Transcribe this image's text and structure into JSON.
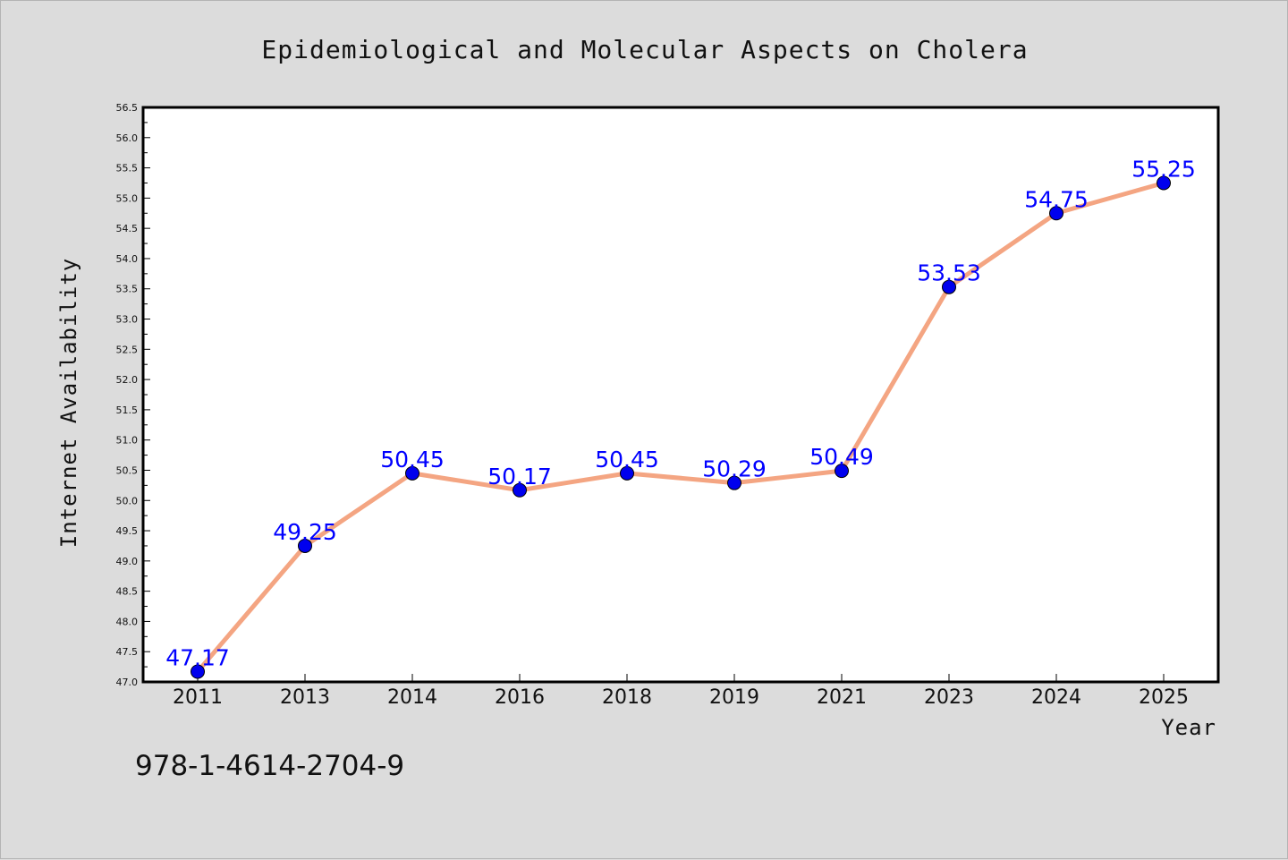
{
  "chart_data": {
    "type": "line",
    "title": "Epidemiological and Molecular Aspects on Cholera",
    "xlabel": "Year",
    "ylabel": "Internet Availability",
    "categories": [
      "2011",
      "2013",
      "2014",
      "2016",
      "2018",
      "2019",
      "2021",
      "2023",
      "2024",
      "2025"
    ],
    "series": [
      {
        "values": [
          47.17,
          49.25,
          50.45,
          50.17,
          50.45,
          50.29,
          50.49,
          53.53,
          54.75,
          55.25
        ],
        "labels": [
          "47.17",
          "49.25",
          "50.45",
          "50.17",
          "50.45",
          "50.29",
          "50.49",
          "53.53",
          "54.75",
          "55.25"
        ],
        "line_color": "#f4a582",
        "marker_color": "#0000ee"
      }
    ],
    "ylim": [
      47.0,
      56.5
    ],
    "yticks": [
      "47.0",
      "47.5",
      "48.0",
      "48.5",
      "49.0",
      "49.5",
      "50.0",
      "50.5",
      "51.0",
      "51.5",
      "52.0",
      "52.5",
      "53.0",
      "53.5",
      "54.0",
      "54.5",
      "55.0",
      "55.5",
      "56.0",
      "56.5"
    ],
    "grid": false,
    "legend": "none"
  },
  "footer": {
    "isbn": "978-1-4614-2704-9"
  },
  "colors": {
    "background": "#dcdcdc",
    "plot_background": "#ffffff",
    "label_color": "#0000ff"
  }
}
